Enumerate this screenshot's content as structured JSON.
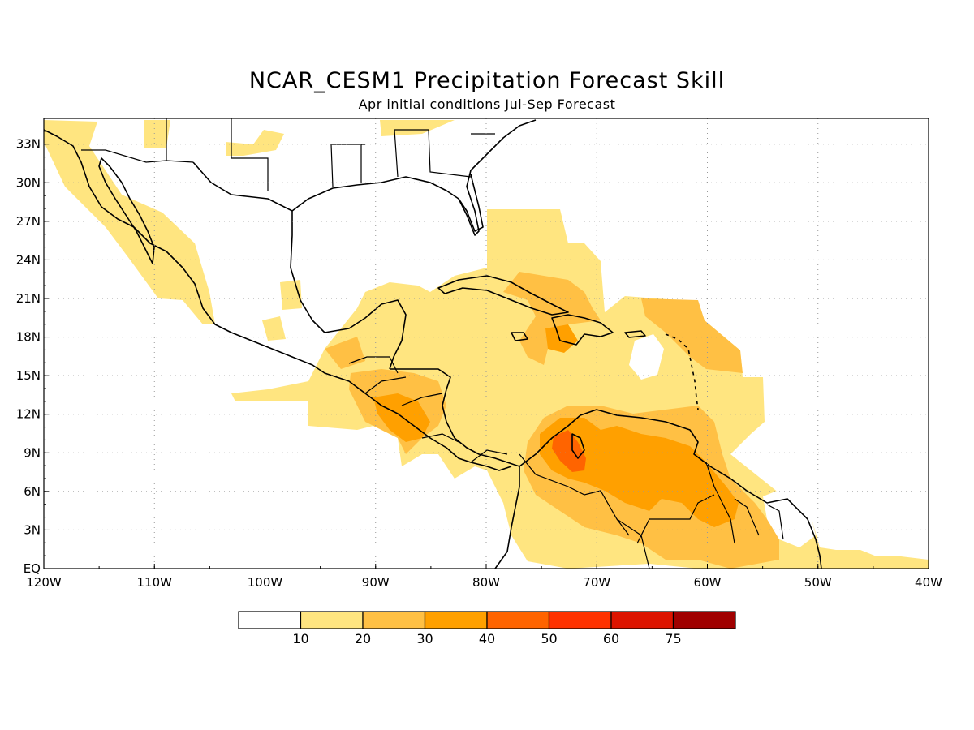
{
  "title": "NCAR_CESM1 Precipitation Forecast Skill",
  "subtitle": "Apr initial conditions  Jul-Sep Forecast",
  "map": {
    "lon_range": [
      -120,
      -40
    ],
    "lat_range": [
      0,
      35
    ],
    "lon_ticks": [
      {
        "value": -120,
        "label": "120W"
      },
      {
        "value": -110,
        "label": "110W"
      },
      {
        "value": -100,
        "label": "100W"
      },
      {
        "value": -90,
        "label": "90W"
      },
      {
        "value": -80,
        "label": "80W"
      },
      {
        "value": -70,
        "label": "70W"
      },
      {
        "value": -60,
        "label": "60W"
      },
      {
        "value": -50,
        "label": "50W"
      },
      {
        "value": -40,
        "label": "40W"
      }
    ],
    "lat_ticks": [
      {
        "value": 0,
        "label": "EQ"
      },
      {
        "value": 3,
        "label": "3N"
      },
      {
        "value": 6,
        "label": "6N"
      },
      {
        "value": 9,
        "label": "9N"
      },
      {
        "value": 12,
        "label": "12N"
      },
      {
        "value": 15,
        "label": "15N"
      },
      {
        "value": 18,
        "label": "18N"
      },
      {
        "value": 21,
        "label": "21N"
      },
      {
        "value": 24,
        "label": "24N"
      },
      {
        "value": 27,
        "label": "27N"
      },
      {
        "value": 30,
        "label": "30N"
      },
      {
        "value": 33,
        "label": "33N"
      }
    ],
    "grid": true
  },
  "colorbar": {
    "colors": [
      "#ffffff",
      "#ffe580",
      "#ffc044",
      "#ffa000",
      "#ff6400",
      "#ff3200",
      "#dd1400",
      "#a00000"
    ],
    "labels": [
      "10",
      "20",
      "30",
      "40",
      "50",
      "60",
      "75"
    ]
  },
  "colors": {
    "c10": "#ffe580",
    "c20": "#ffc044",
    "c30": "#ffa000",
    "c40": "#ff6400"
  }
}
